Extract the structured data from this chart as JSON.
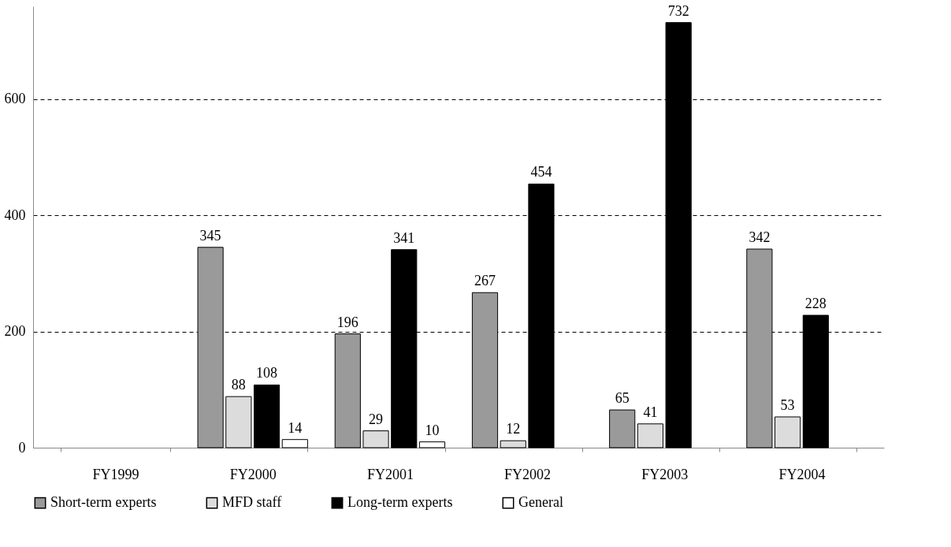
{
  "chart_data": {
    "type": "bar",
    "categories": [
      "FY1999",
      "FY2000",
      "FY2001",
      "FY2002",
      "FY2003",
      "FY2004"
    ],
    "series": [
      {
        "name": "Short-term experts",
        "color": "#9a9a9a",
        "values": [
          null,
          345,
          196,
          267,
          65,
          342
        ]
      },
      {
        "name": "MFD staff",
        "color": "#dcdcdc",
        "values": [
          null,
          88,
          29,
          12,
          41,
          53
        ]
      },
      {
        "name": "Long-term experts",
        "color": "#000000",
        "values": [
          null,
          108,
          341,
          454,
          732,
          228
        ]
      },
      {
        "name": "General",
        "color": "#ffffff",
        "values": [
          null,
          14,
          10,
          null,
          null,
          null
        ]
      }
    ],
    "ylim": [
      0,
      760
    ],
    "yticks": [
      0,
      200,
      400,
      600
    ],
    "grid": "y",
    "legend": "bottom",
    "data_labels": true
  }
}
